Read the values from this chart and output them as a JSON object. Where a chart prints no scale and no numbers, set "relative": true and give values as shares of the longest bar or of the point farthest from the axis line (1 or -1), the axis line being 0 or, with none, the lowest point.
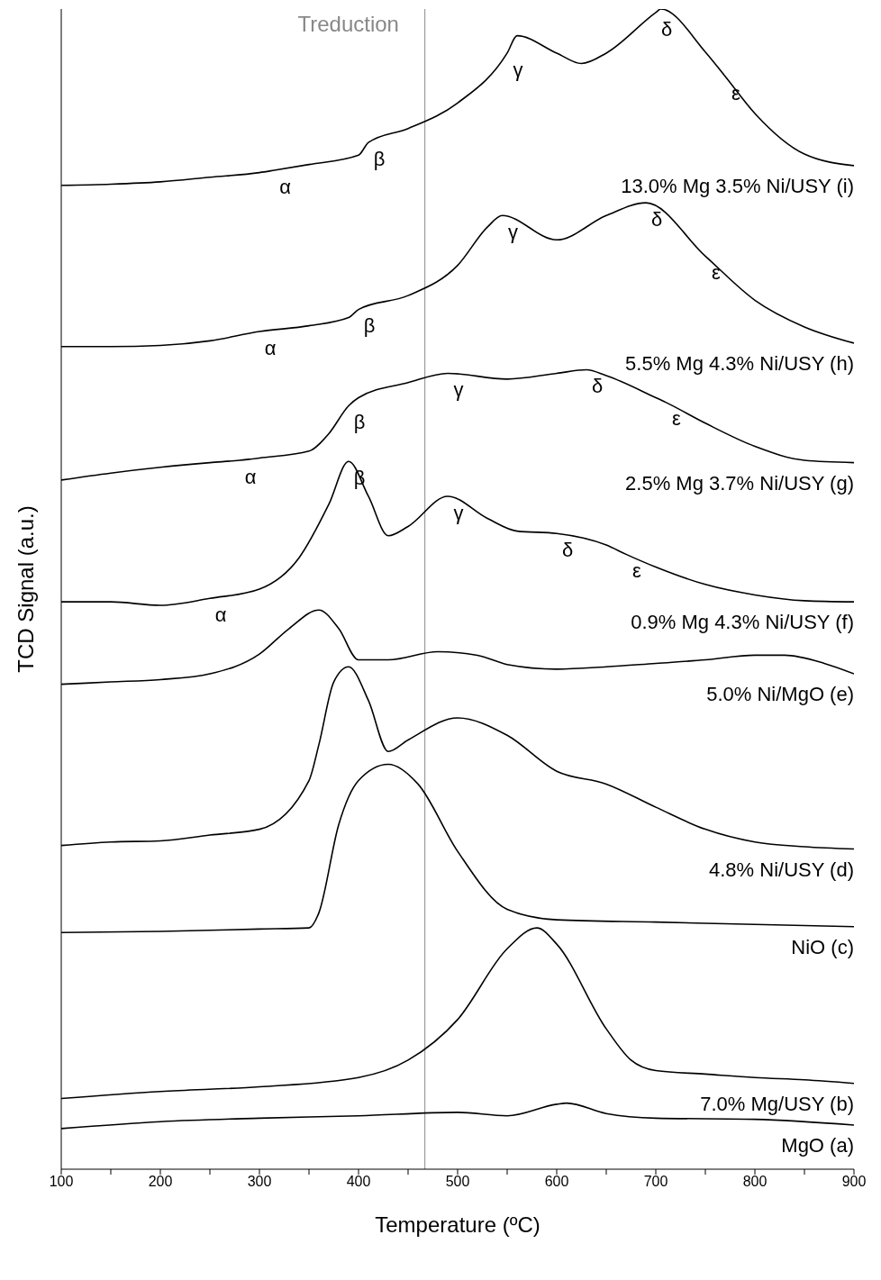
{
  "chart_data": {
    "type": "line",
    "relative": true,
    "xlabel": "Temperature (ºC)",
    "ylabel": "TCD Signal (a.u.)",
    "xlim": [
      100,
      900
    ],
    "xticks": [
      100,
      {
        "value": 150,
        "label": null
      },
      200,
      {
        "value": 250,
        "label": null
      },
      300,
      {
        "value": 350,
        "label": null
      },
      400,
      {
        "value": 450,
        "label": null
      },
      500,
      {
        "value": 550,
        "label": null
      },
      600,
      {
        "value": 650,
        "label": null
      },
      700,
      {
        "value": 750,
        "label": null
      },
      800,
      {
        "value": 850,
        "label": null
      },
      900
    ],
    "grid": false,
    "legend": false,
    "marker": "none",
    "line_style": "solid",
    "ref_lines": [
      {
        "axis": "x",
        "value": 467,
        "label": "Treduction",
        "color": "#888888"
      }
    ],
    "series": [
      {
        "name": "13.0% Mg 3.5% Ni/USY (i)",
        "color": "#000000",
        "x": [
          100,
          150,
          200,
          250,
          300,
          315,
          350,
          400,
          410,
          450,
          500,
          550,
          560,
          600,
          625,
          650,
          700,
          705,
          750,
          770,
          800,
          850,
          900
        ],
        "values": [
          0.848,
          0.849,
          0.851,
          0.855,
          0.859,
          0.861,
          0.866,
          0.874,
          0.885,
          0.897,
          0.919,
          0.962,
          0.977,
          0.962,
          0.953,
          0.962,
          0.997,
          1.0,
          0.963,
          0.942,
          0.91,
          0.875,
          0.865
        ]
      },
      {
        "name": "5.5% Mg 4.3% Ni/USY (h)",
        "color": "#000000",
        "x": [
          100,
          150,
          200,
          250,
          300,
          350,
          390,
          400,
          450,
          500,
          530,
          545,
          600,
          650,
          690,
          750,
          800,
          850,
          900
        ],
        "values": [
          0.709,
          0.709,
          0.71,
          0.714,
          0.722,
          0.727,
          0.734,
          0.741,
          0.753,
          0.779,
          0.812,
          0.822,
          0.801,
          0.822,
          0.833,
          0.787,
          0.749,
          0.726,
          0.712
        ]
      },
      {
        "name": "2.5% Mg 3.7% Ni/USY (g)",
        "color": "#000000",
        "x": [
          100,
          150,
          200,
          250,
          280,
          300,
          350,
          370,
          390,
          400,
          450,
          490,
          550,
          600,
          630,
          650,
          700,
          710,
          750,
          800,
          850,
          900
        ],
        "values": [
          0.594,
          0.6,
          0.605,
          0.609,
          0.611,
          0.613,
          0.619,
          0.634,
          0.658,
          0.665,
          0.678,
          0.686,
          0.681,
          0.686,
          0.689,
          0.684,
          0.665,
          0.661,
          0.643,
          0.623,
          0.611,
          0.609
        ]
      },
      {
        "name": "0.9% Mg 4.3% Ni/USY (f)",
        "color": "#000000",
        "x": [
          100,
          150,
          200,
          250,
          300,
          340,
          370,
          390,
          410,
          430,
          450,
          490,
          530,
          560,
          600,
          650,
          670,
          700,
          750,
          800,
          850,
          900
        ],
        "values": [
          0.489,
          0.489,
          0.486,
          0.492,
          0.5,
          0.527,
          0.573,
          0.61,
          0.58,
          0.546,
          0.554,
          0.58,
          0.561,
          0.55,
          0.548,
          0.538,
          0.53,
          0.519,
          0.504,
          0.495,
          0.49,
          0.489
        ]
      },
      {
        "name": "5.0% Ni/MgO (e)",
        "color": "#000000",
        "x": [
          100,
          150,
          200,
          250,
          300,
          330,
          360,
          380,
          400,
          430,
          480,
          520,
          550,
          600,
          650,
          700,
          750,
          800,
          830,
          870,
          900
        ],
        "values": [
          0.418,
          0.42,
          0.422,
          0.427,
          0.444,
          0.466,
          0.482,
          0.466,
          0.439,
          0.439,
          0.446,
          0.443,
          0.435,
          0.431,
          0.433,
          0.436,
          0.439,
          0.443,
          0.443,
          0.436,
          0.427
        ]
      },
      {
        "name": "4.8% Ni/USY (d)",
        "color": "#000000",
        "x": [
          100,
          150,
          200,
          250,
          300,
          350,
          360,
          375,
          390,
          410,
          430,
          450,
          500,
          550,
          600,
          650,
          700,
          750,
          800,
          850,
          900
        ],
        "values": [
          0.279,
          0.282,
          0.283,
          0.288,
          0.293,
          0.335,
          0.366,
          0.42,
          0.433,
          0.404,
          0.36,
          0.37,
          0.389,
          0.374,
          0.343,
          0.332,
          0.312,
          0.293,
          0.282,
          0.278,
          0.276
        ]
      },
      {
        "name": "NiO (c)",
        "color": "#000000",
        "x": [
          100,
          200,
          300,
          350,
          360,
          380,
          400,
          430,
          460,
          500,
          550,
          600,
          700,
          800,
          900
        ],
        "values": [
          0.204,
          0.205,
          0.207,
          0.208,
          0.221,
          0.297,
          0.335,
          0.349,
          0.332,
          0.274,
          0.224,
          0.215,
          0.213,
          0.211,
          0.209
        ]
      },
      {
        "name": "7.0% Mg/USY (b)",
        "color": "#000000",
        "x": [
          100,
          200,
          300,
          400,
          450,
          500,
          550,
          580,
          600,
          650,
          675,
          700,
          750,
          800,
          850,
          900
        ],
        "values": [
          0.061,
          0.067,
          0.071,
          0.079,
          0.094,
          0.129,
          0.19,
          0.208,
          0.194,
          0.121,
          0.094,
          0.085,
          0.082,
          0.079,
          0.077,
          0.074
        ]
      },
      {
        "name": "MgO (a)",
        "color": "#000000",
        "x": [
          100,
          200,
          300,
          400,
          500,
          550,
          600,
          610,
          650,
          700,
          800,
          900
        ],
        "values": [
          0.035,
          0.041,
          0.044,
          0.046,
          0.049,
          0.046,
          0.056,
          0.057,
          0.048,
          0.044,
          0.043,
          0.038
        ]
      }
    ],
    "annotations": [
      {
        "text": "α",
        "x": 315,
        "y": 0.861
      },
      {
        "text": "β",
        "x": 410,
        "y": 0.885
      },
      {
        "text": "γ",
        "x": 550,
        "y": 0.962
      },
      {
        "text": "δ",
        "x": 700,
        "y": 0.997
      },
      {
        "text": "ε",
        "x": 770,
        "y": 0.942
      },
      {
        "text": "α",
        "x": 300,
        "y": 0.722
      },
      {
        "text": "β",
        "x": 400,
        "y": 0.741
      },
      {
        "text": "γ",
        "x": 545,
        "y": 0.822
      },
      {
        "text": "δ",
        "x": 690,
        "y": 0.833
      },
      {
        "text": "ε",
        "x": 750,
        "y": 0.787
      },
      {
        "text": "α",
        "x": 280,
        "y": 0.611
      },
      {
        "text": "β",
        "x": 390,
        "y": 0.658
      },
      {
        "text": "γ",
        "x": 490,
        "y": 0.686
      },
      {
        "text": "δ",
        "x": 630,
        "y": 0.689
      },
      {
        "text": "ε",
        "x": 710,
        "y": 0.661
      },
      {
        "text": "α",
        "x": 250,
        "y": 0.492
      },
      {
        "text": "β",
        "x": 390,
        "y": 0.61
      },
      {
        "text": "γ",
        "x": 490,
        "y": 0.58
      },
      {
        "text": "δ",
        "x": 600,
        "y": 0.548
      },
      {
        "text": "ε",
        "x": 670,
        "y": 0.53
      }
    ]
  }
}
